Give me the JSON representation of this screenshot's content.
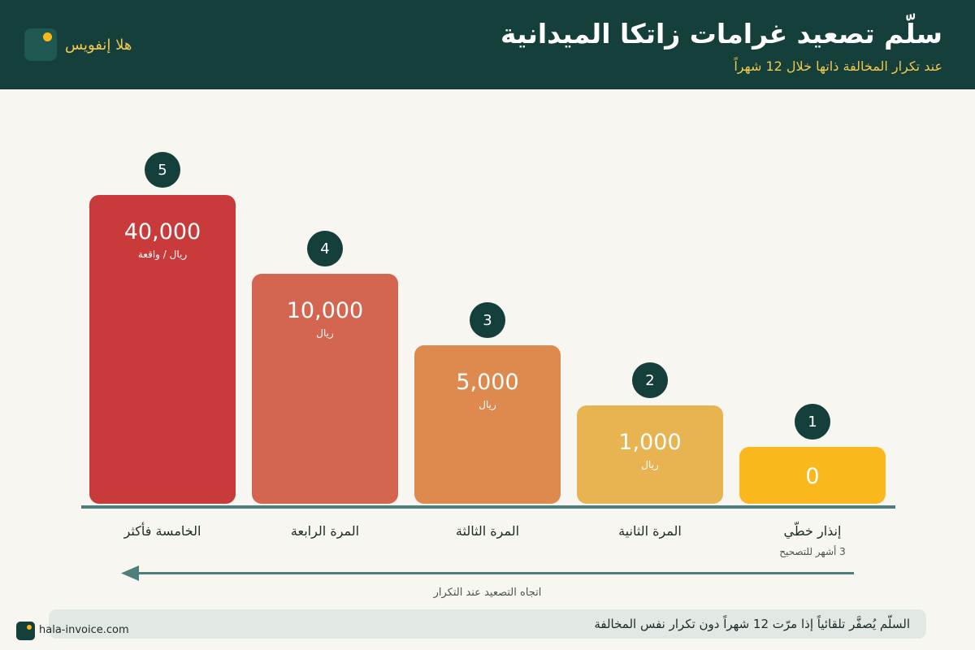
{
  "header": {
    "title": "سلّم تصعيد غرامات زاتكا الميدانية",
    "subtitle": "عند تكرار المخالفة ذاتها خلال 12 شهراً",
    "brand_name": "هلا إنفويس"
  },
  "chart_data": {
    "type": "bar",
    "title": "سلّم تصعيد غرامات زاتكا الميدانية",
    "subtitle": "عند تكرار المخالفة ذاتها خلال 12 شهراً",
    "categories": [
      "إنذار خطّي",
      "المرة الثانية",
      "المرة الثالثة",
      "المرة الرابعة",
      "الخامسة فأكثر"
    ],
    "category_notes": [
      "3 أشهر للتصحيح",
      "",
      "",
      "",
      ""
    ],
    "values": [
      0,
      1000,
      5000,
      10000,
      40000
    ],
    "value_labels": [
      "0",
      "1,000",
      "5,000",
      "10,000",
      "40,000"
    ],
    "unit_labels": [
      "",
      "ريال",
      "ريال",
      "ريال",
      "ريال / واقعة"
    ],
    "steps": [
      "1",
      "2",
      "3",
      "4",
      "5"
    ],
    "colors": [
      "#fbb81c",
      "#e8b451",
      "#de8a4f",
      "#d46551",
      "#c93a3b"
    ],
    "axis_color": "#4e7f7a",
    "direction_label": "اتجاه التصعيد عند التكرار",
    "xlabel": "",
    "ylabel": ""
  },
  "note": {
    "text": "السلّم يُصفَّر تلقائياً إذا مرّت 12 شهراً دون تكرار نفس المخالفة"
  },
  "footer": {
    "url": "hala-invoice.com"
  }
}
